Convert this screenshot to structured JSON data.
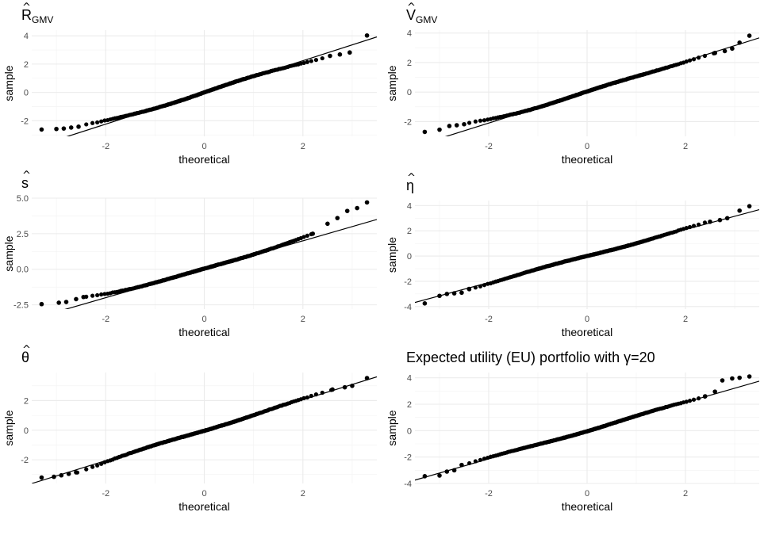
{
  "chart_data": [
    {
      "type": "scatter",
      "title": {
        "main": "R",
        "hat": "^",
        "sub": "GMV"
      },
      "xlabel": "theoretical",
      "ylabel": "sample",
      "xlim": [
        -3.5,
        3.5
      ],
      "ylim": [
        -3.1,
        4.4
      ],
      "xticks": [
        -2,
        0,
        2
      ],
      "xtick_labels": [
        "-2",
        "0",
        "2"
      ],
      "yticks": [
        -2,
        0,
        2,
        4
      ],
      "ytick_labels": [
        "-2",
        "0",
        "2",
        "4"
      ],
      "grid": true,
      "reference_line": {
        "intercept": 0.0,
        "slope": 1.12
      },
      "lower_tail": [
        [
          -3.3,
          -2.62
        ],
        [
          -3.0,
          -2.58
        ],
        [
          -2.85,
          -2.55
        ],
        [
          -2.7,
          -2.48
        ],
        [
          -2.55,
          -2.42
        ]
      ],
      "upper_tail": [
        [
          2.55,
          2.58
        ],
        [
          2.75,
          2.68
        ],
        [
          2.95,
          2.82
        ],
        [
          3.3,
          4.02
        ]
      ]
    },
    {
      "type": "scatter",
      "title": {
        "main": "V",
        "hat": "^",
        "sub": "GMV"
      },
      "xlabel": "theoretical",
      "ylabel": "sample",
      "xlim": [
        -3.5,
        3.5
      ],
      "ylim": [
        -3.0,
        4.2
      ],
      "xticks": [
        -2,
        0,
        2
      ],
      "xtick_labels": [
        "-2",
        "0",
        "2"
      ],
      "yticks": [
        -2,
        0,
        2,
        4
      ],
      "ytick_labels": [
        "-2",
        "0",
        "2",
        "4"
      ],
      "grid": true,
      "reference_line": {
        "intercept": 0.0,
        "slope": 1.05
      },
      "lower_tail": [
        [
          -3.3,
          -2.7
        ],
        [
          -3.0,
          -2.55
        ],
        [
          -2.8,
          -2.3
        ],
        [
          -2.65,
          -2.25
        ],
        [
          -2.5,
          -2.18
        ]
      ],
      "upper_tail": [
        [
          2.6,
          2.65
        ],
        [
          2.8,
          2.78
        ],
        [
          2.95,
          2.95
        ],
        [
          3.1,
          3.35
        ],
        [
          3.3,
          3.82
        ]
      ]
    },
    {
      "type": "scatter",
      "title": {
        "main": "s",
        "hat": "^",
        "sub": ""
      },
      "xlabel": "theoretical",
      "ylabel": "sample",
      "xlim": [
        -3.5,
        3.5
      ],
      "ylim": [
        -2.8,
        5.0
      ],
      "xticks": [
        -2,
        0,
        2
      ],
      "xtick_labels": [
        "-2",
        "0",
        "2"
      ],
      "yticks": [
        -2.5,
        0.0,
        2.5,
        5.0
      ],
      "ytick_labels": [
        "-2.5",
        "0.0",
        "2.5",
        "5.0"
      ],
      "grid": true,
      "reference_line": {
        "intercept": 0.0,
        "slope": 1.0
      },
      "lower_tail": [
        [
          -3.3,
          -2.45
        ],
        [
          -2.95,
          -2.35
        ],
        [
          -2.8,
          -2.3
        ],
        [
          -2.6,
          -2.1
        ],
        [
          -2.45,
          -1.95
        ]
      ],
      "upper_tail": [
        [
          2.2,
          2.5
        ],
        [
          2.5,
          3.2
        ],
        [
          2.7,
          3.6
        ],
        [
          2.9,
          4.1
        ],
        [
          3.1,
          4.3
        ],
        [
          3.3,
          4.7
        ]
      ]
    },
    {
      "type": "scatter",
      "title": {
        "main": "η",
        "hat": "^",
        "sub": ""
      },
      "xlabel": "theoretical",
      "ylabel": "sample",
      "xlim": [
        -3.5,
        3.5
      ],
      "ylim": [
        -4.2,
        4.4
      ],
      "xticks": [
        -2,
        0,
        2
      ],
      "xtick_labels": [
        "-2",
        "0",
        "2"
      ],
      "yticks": [
        -4,
        -2,
        0,
        2,
        4
      ],
      "ytick_labels": [
        "-4",
        "-2",
        "0",
        "2",
        "4"
      ],
      "grid": true,
      "reference_line": {
        "intercept": 0.0,
        "slope": 1.05
      },
      "lower_tail": [
        [
          -3.3,
          -3.75
        ],
        [
          -3.0,
          -3.15
        ],
        [
          -2.85,
          -3.0
        ],
        [
          -2.7,
          -2.95
        ],
        [
          -2.55,
          -2.9
        ],
        [
          -2.4,
          -2.6
        ]
      ],
      "upper_tail": [
        [
          2.5,
          2.72
        ],
        [
          2.7,
          2.85
        ],
        [
          2.85,
          3.0
        ],
        [
          3.1,
          3.6
        ],
        [
          3.3,
          3.95
        ]
      ]
    },
    {
      "type": "scatter",
      "title": {
        "main": "θ",
        "hat": "^",
        "sub": ""
      },
      "xlabel": "theoretical",
      "ylabel": "sample",
      "xlim": [
        -3.5,
        3.5
      ],
      "ylim": [
        -3.6,
        3.9
      ],
      "xticks": [
        -2,
        0,
        2
      ],
      "xtick_labels": [
        "-2",
        "0",
        "2"
      ],
      "yticks": [
        -2,
        0,
        2
      ],
      "ytick_labels": [
        "-2",
        "0",
        "2"
      ],
      "grid": true,
      "reference_line": {
        "intercept": 0.0,
        "slope": 1.03
      },
      "lower_tail": [
        [
          -3.3,
          -3.2
        ],
        [
          -3.05,
          -3.15
        ],
        [
          -2.9,
          -3.05
        ],
        [
          -2.75,
          -2.95
        ],
        [
          -2.6,
          -2.85
        ]
      ],
      "upper_tail": [
        [
          2.6,
          2.75
        ],
        [
          2.85,
          2.9
        ],
        [
          3.0,
          3.0
        ],
        [
          3.3,
          3.52
        ]
      ]
    },
    {
      "type": "scatter",
      "title": {
        "main": "Expected utility (EU) portfolio with γ=20",
        "hat": "",
        "sub": ""
      },
      "xlabel": "theoretical",
      "ylabel": "sample",
      "xlim": [
        -3.5,
        3.5
      ],
      "ylim": [
        -4.0,
        4.4
      ],
      "xticks": [
        -2,
        0,
        2
      ],
      "xtick_labels": [
        "-2",
        "0",
        "2"
      ],
      "yticks": [
        -4,
        -2,
        0,
        2,
        4
      ],
      "ytick_labels": [
        "-4",
        "-2",
        "0",
        "2",
        "4"
      ],
      "grid": true,
      "reference_line": {
        "intercept": 0.0,
        "slope": 1.07
      },
      "lower_tail": [
        [
          -3.3,
          -3.45
        ],
        [
          -3.0,
          -3.4
        ],
        [
          -2.85,
          -3.1
        ],
        [
          -2.7,
          -3.0
        ],
        [
          -2.55,
          -2.6
        ]
      ],
      "upper_tail": [
        [
          2.4,
          2.6
        ],
        [
          2.6,
          2.95
        ],
        [
          2.75,
          3.8
        ],
        [
          2.95,
          3.95
        ],
        [
          3.1,
          4.0
        ],
        [
          3.3,
          4.1
        ]
      ]
    }
  ]
}
